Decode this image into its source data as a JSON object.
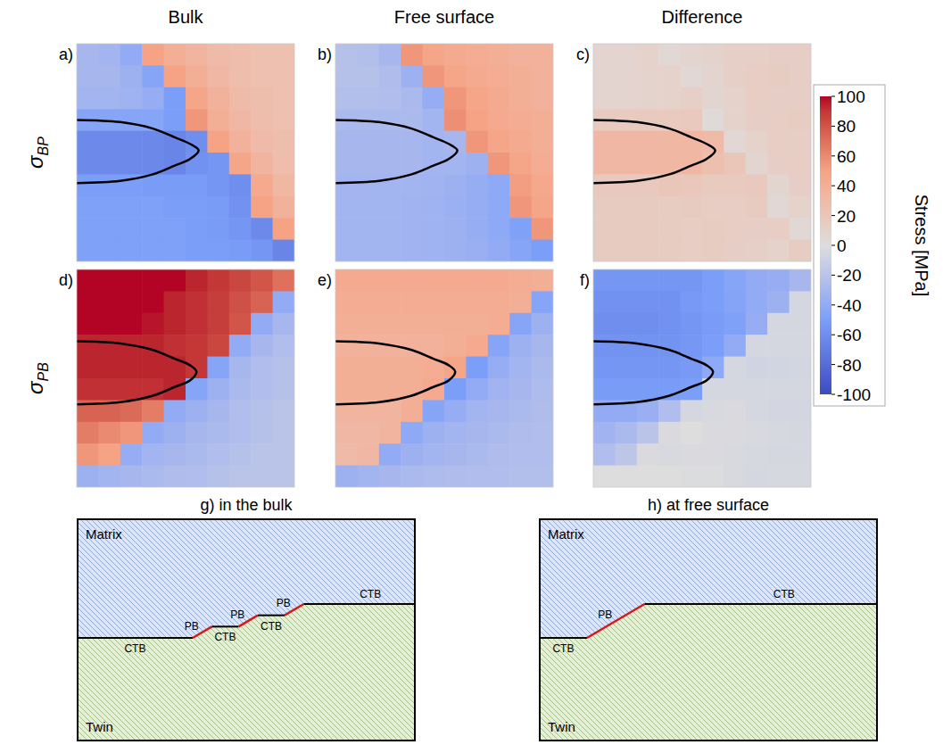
{
  "column_titles": [
    "Bulk",
    "Free surface",
    "Difference"
  ],
  "row_labels": [
    {
      "symbol": "σ",
      "subscript": "BP"
    },
    {
      "symbol": "σ",
      "subscript": "PB"
    }
  ],
  "colorbar": {
    "title": "Stress [MPa]",
    "range": [
      -100,
      100
    ],
    "ticks": [
      100,
      80,
      60,
      40,
      20,
      0,
      -20,
      -40,
      -60,
      -80,
      -100
    ]
  },
  "chart_data": [
    {
      "type": "heatmap",
      "title": "a)",
      "xlim": [
        0,
        100
      ],
      "ylim": [
        0,
        100
      ],
      "tick_labels": false,
      "x": [
        5,
        15,
        25,
        35,
        45,
        55,
        65,
        75,
        85,
        95
      ],
      "y": [
        95,
        85,
        75,
        65,
        55,
        45,
        35,
        25,
        15,
        5
      ],
      "values": [
        [
          -30,
          -32,
          -40,
          50,
          40,
          35,
          30,
          28,
          25,
          25
        ],
        [
          -30,
          -30,
          -35,
          -45,
          50,
          40,
          32,
          28,
          25,
          25
        ],
        [
          -32,
          -32,
          -34,
          -38,
          -50,
          48,
          38,
          30,
          27,
          25
        ],
        [
          -45,
          -45,
          -45,
          -45,
          -50,
          55,
          40,
          32,
          28,
          25
        ],
        [
          -62,
          -62,
          -62,
          -63,
          -65,
          -60,
          50,
          38,
          30,
          27
        ],
        [
          -62,
          -62,
          -62,
          -63,
          -65,
          -58,
          -55,
          48,
          35,
          28
        ],
        [
          -50,
          -50,
          -50,
          -52,
          -52,
          -52,
          -55,
          -60,
          45,
          33
        ],
        [
          -48,
          -48,
          -48,
          -48,
          -50,
          -50,
          -52,
          -58,
          50,
          38
        ],
        [
          -48,
          -48,
          -48,
          -48,
          -48,
          -50,
          -52,
          -55,
          -62,
          50
        ],
        [
          -48,
          -48,
          -48,
          -48,
          -48,
          -50,
          -50,
          -52,
          -55,
          -65
        ]
      ],
      "contour": {
        "x": [
          0,
          20,
          35,
          45,
          52,
          56,
          52,
          45,
          35,
          20,
          0
        ],
        "y": [
          65,
          64,
          61,
          57,
          54,
          51,
          47,
          44,
          40,
          37,
          36
        ]
      }
    },
    {
      "type": "heatmap",
      "title": "b)",
      "xlim": [
        0,
        100
      ],
      "ylim": [
        0,
        100
      ],
      "tick_labels": false,
      "x": [
        5,
        15,
        25,
        35,
        45,
        55,
        65,
        75,
        85,
        95
      ],
      "y": [
        95,
        85,
        75,
        65,
        55,
        45,
        35,
        25,
        15,
        5
      ],
      "values": [
        [
          -22,
          -24,
          -30,
          55,
          48,
          44,
          42,
          40,
          38,
          38
        ],
        [
          -22,
          -22,
          -26,
          -35,
          55,
          48,
          44,
          42,
          40,
          38
        ],
        [
          -24,
          -24,
          -25,
          -28,
          -38,
          55,
          48,
          44,
          40,
          38
        ],
        [
          -28,
          -28,
          -28,
          -28,
          -32,
          58,
          50,
          45,
          42,
          40
        ],
        [
          -30,
          -30,
          -30,
          -30,
          -32,
          -30,
          55,
          48,
          44,
          40
        ],
        [
          -30,
          -30,
          -30,
          -30,
          -32,
          -32,
          -35,
          55,
          48,
          42
        ],
        [
          -32,
          -32,
          -32,
          -32,
          -33,
          -35,
          -38,
          -42,
          52,
          46
        ],
        [
          -32,
          -32,
          -32,
          -33,
          -34,
          -36,
          -38,
          -42,
          55,
          48
        ],
        [
          -32,
          -32,
          -32,
          -33,
          -34,
          -35,
          -38,
          -42,
          -48,
          55
        ],
        [
          -32,
          -32,
          -32,
          -33,
          -34,
          -35,
          -37,
          -40,
          -45,
          -50
        ]
      ],
      "contour": {
        "x": [
          0,
          20,
          35,
          45,
          52,
          56,
          52,
          45,
          35,
          20,
          0
        ],
        "y": [
          65,
          64,
          61,
          57,
          54,
          51,
          47,
          44,
          40,
          37,
          36
        ]
      }
    },
    {
      "type": "heatmap",
      "title": "c)",
      "xlim": [
        0,
        100
      ],
      "ylim": [
        0,
        100
      ],
      "tick_labels": false,
      "x": [
        5,
        15,
        25,
        35,
        45,
        55,
        65,
        75,
        85,
        95
      ],
      "y": [
        95,
        85,
        75,
        65,
        55,
        45,
        35,
        25,
        15,
        5
      ],
      "values": [
        [
          8,
          8,
          10,
          5,
          8,
          9,
          12,
          12,
          13,
          13
        ],
        [
          8,
          8,
          9,
          10,
          5,
          8,
          12,
          14,
          15,
          13
        ],
        [
          8,
          8,
          9,
          10,
          12,
          7,
          10,
          14,
          13,
          13
        ],
        [
          17,
          17,
          17,
          17,
          18,
          3,
          10,
          13,
          14,
          15
        ],
        [
          32,
          32,
          32,
          33,
          33,
          30,
          5,
          10,
          14,
          13
        ],
        [
          32,
          32,
          32,
          33,
          33,
          26,
          20,
          7,
          13,
          14
        ],
        [
          18,
          18,
          18,
          20,
          19,
          17,
          17,
          18,
          7,
          13
        ],
        [
          16,
          16,
          16,
          15,
          16,
          14,
          14,
          16,
          5,
          10
        ],
        [
          16,
          16,
          16,
          15,
          14,
          15,
          14,
          13,
          14,
          5
        ],
        [
          16,
          16,
          16,
          15,
          14,
          15,
          13,
          12,
          10,
          15
        ]
      ],
      "contour": {
        "x": [
          0,
          20,
          35,
          45,
          52,
          56,
          52,
          45,
          35,
          20,
          0
        ],
        "y": [
          65,
          64,
          61,
          57,
          54,
          51,
          47,
          44,
          40,
          37,
          36
        ]
      }
    },
    {
      "type": "heatmap",
      "title": "d)",
      "xlim": [
        0,
        100
      ],
      "ylim": [
        0,
        100
      ],
      "tick_labels": false,
      "x": [
        5,
        15,
        25,
        35,
        45,
        55,
        65,
        75,
        85,
        95
      ],
      "y": [
        95,
        85,
        75,
        65,
        55,
        45,
        35,
        25,
        15,
        5
      ],
      "values": [
        [
          100,
          100,
          100,
          100,
          100,
          95,
          90,
          85,
          80,
          70
        ],
        [
          100,
          100,
          100,
          100,
          95,
          92,
          88,
          82,
          75,
          -40
        ],
        [
          100,
          100,
          100,
          98,
          95,
          92,
          88,
          80,
          -40,
          -30
        ],
        [
          95,
          95,
          95,
          95,
          92,
          90,
          85,
          -40,
          -30,
          -25
        ],
        [
          95,
          95,
          95,
          95,
          95,
          90,
          -45,
          -30,
          -25,
          -22
        ],
        [
          92,
          92,
          92,
          92,
          95,
          -45,
          -35,
          -28,
          -25,
          -22
        ],
        [
          75,
          75,
          72,
          65,
          -40,
          -35,
          -30,
          -25,
          -22,
          -20
        ],
        [
          65,
          60,
          55,
          -40,
          -35,
          -30,
          -28,
          -25,
          -22,
          -20
        ],
        [
          55,
          50,
          -38,
          -32,
          -30,
          -28,
          -25,
          -22,
          -20,
          -20
        ],
        [
          -35,
          -32,
          -30,
          -28,
          -26,
          -25,
          -22,
          -20,
          -20,
          -20
        ]
      ],
      "contour": {
        "x": [
          0,
          20,
          35,
          45,
          52,
          55,
          52,
          45,
          35,
          20,
          0
        ],
        "y": [
          67,
          66,
          63,
          59,
          56,
          53,
          49,
          46,
          42,
          39,
          38
        ]
      }
    },
    {
      "type": "heatmap",
      "title": "e)",
      "xlim": [
        0,
        100
      ],
      "ylim": [
        0,
        100
      ],
      "tick_labels": false,
      "x": [
        5,
        15,
        25,
        35,
        45,
        55,
        65,
        75,
        85,
        95
      ],
      "y": [
        95,
        85,
        75,
        65,
        55,
        45,
        35,
        25,
        15,
        5
      ],
      "values": [
        [
          45,
          45,
          45,
          45,
          45,
          45,
          45,
          45,
          42,
          40
        ],
        [
          42,
          42,
          42,
          42,
          42,
          42,
          42,
          42,
          40,
          -45
        ],
        [
          40,
          40,
          40,
          40,
          40,
          40,
          40,
          42,
          -45,
          -35
        ],
        [
          38,
          38,
          38,
          38,
          38,
          40,
          45,
          -45,
          -35,
          -30
        ],
        [
          40,
          40,
          40,
          40,
          42,
          48,
          -50,
          -38,
          -32,
          -28
        ],
        [
          40,
          40,
          40,
          40,
          45,
          -50,
          -40,
          -33,
          -30,
          -27
        ],
        [
          35,
          35,
          35,
          40,
          -45,
          -38,
          -32,
          -30,
          -28,
          -26
        ],
        [
          32,
          32,
          35,
          -42,
          -35,
          -32,
          -30,
          -28,
          -26,
          -25
        ],
        [
          30,
          32,
          -40,
          -35,
          -32,
          -30,
          -28,
          -26,
          -25,
          -25
        ],
        [
          -35,
          -32,
          -30,
          -28,
          -27,
          -26,
          -25,
          -25,
          -24,
          -24
        ]
      ],
      "contour": {
        "x": [
          0,
          20,
          35,
          45,
          52,
          55,
          52,
          45,
          35,
          20,
          0
        ],
        "y": [
          67,
          66,
          63,
          59,
          56,
          53,
          49,
          46,
          42,
          39,
          38
        ]
      }
    },
    {
      "type": "heatmap",
      "title": "f)",
      "xlim": [
        0,
        100
      ],
      "ylim": [
        0,
        100
      ],
      "tick_labels": false,
      "x": [
        5,
        15,
        25,
        35,
        45,
        55,
        65,
        75,
        85,
        95
      ],
      "y": [
        95,
        85,
        75,
        65,
        55,
        45,
        35,
        25,
        15,
        5
      ],
      "values": [
        [
          -55,
          -55,
          -55,
          -55,
          -55,
          -50,
          -45,
          -40,
          -38,
          -30
        ],
        [
          -58,
          -58,
          -58,
          -58,
          -53,
          -50,
          -46,
          -40,
          -35,
          -5
        ],
        [
          -60,
          -60,
          -60,
          -58,
          -55,
          -52,
          -48,
          -38,
          -5,
          -5
        ],
        [
          -57,
          -57,
          -57,
          -57,
          -54,
          -50,
          -40,
          -5,
          -5,
          -5
        ],
        [
          -55,
          -55,
          -55,
          -55,
          -53,
          -42,
          -5,
          -8,
          -7,
          -6
        ],
        [
          -52,
          -52,
          -52,
          -52,
          -50,
          -5,
          -5,
          -5,
          -5,
          -5
        ],
        [
          -40,
          -40,
          -37,
          -25,
          -5,
          -3,
          -2,
          -5,
          -6,
          -6
        ],
        [
          -33,
          -28,
          -20,
          -2,
          0,
          -2,
          -2,
          -3,
          -4,
          -5
        ],
        [
          -25,
          -18,
          -2,
          -3,
          -2,
          -2,
          -3,
          -4,
          -5,
          -5
        ],
        [
          0,
          0,
          0,
          0,
          -1,
          -1,
          -3,
          -5,
          -4,
          -4
        ]
      ],
      "contour": {
        "x": [
          0,
          20,
          35,
          45,
          52,
          55,
          52,
          45,
          35,
          20,
          0
        ],
        "y": [
          67,
          66,
          63,
          59,
          56,
          53,
          49,
          46,
          42,
          39,
          38
        ]
      }
    }
  ],
  "diagrams": [
    {
      "title": "g) in the bulk",
      "regions": {
        "top": "Matrix",
        "bottom": "Twin"
      },
      "segments": [
        "CTB",
        "PB",
        "CTB",
        "PB",
        "CTB",
        "PB",
        "CTB"
      ]
    },
    {
      "title": "h) at free surface",
      "regions": {
        "top": "Matrix",
        "bottom": "Twin"
      },
      "segments": [
        "CTB",
        "PB",
        "CTB"
      ]
    }
  ]
}
